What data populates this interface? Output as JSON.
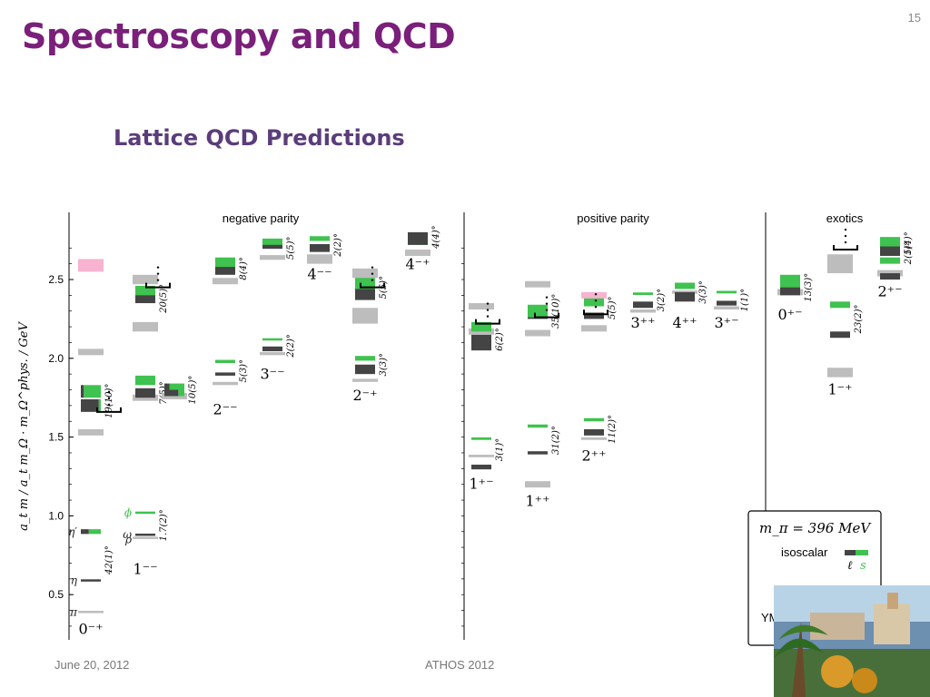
{
  "slide": {
    "title": "Spectroscopy and QCD",
    "subtitle": "Lattice QCD Predictions",
    "page_number": "15",
    "footer_date": "June 20, 2012",
    "footer_event": "ATHOS 2012"
  },
  "colors": {
    "isoscalar_light": "#444444",
    "isoscalar_strange": "#3fc24f",
    "isovector": "#bdbdbd",
    "glueball": "#f7b3d0",
    "title": "#7a1f7a",
    "subtitle": "#5a3d7a"
  },
  "chart_data": {
    "type": "spectrum",
    "ylabel": "a_t m / a_t m_Ω · m_Ω^phys. / GeV",
    "ylim": [
      0.25,
      2.85
    ],
    "yticks": [
      "0.5",
      "1.0",
      "1.5",
      "2.0",
      "2.5"
    ],
    "sections": [
      {
        "label": "negative parity",
        "columns": 9
      },
      {
        "label": "positive parity",
        "columns": 6
      },
      {
        "label": "exotics",
        "columns": 3
      }
    ],
    "legend": {
      "pion_mass": "m_π = 396 MeV",
      "isoscalar": "isoscalar",
      "isoscalar_light_symbol": "ℓ",
      "isoscalar_strange_symbol": "s",
      "isovector": "isovector",
      "glueball": "YM glueball"
    },
    "columns": [
      {
        "jpc": "0⁻⁺",
        "sec": 0,
        "col": 0,
        "states": [
          {
            "kind": "isovector",
            "mass": 0.39,
            "err": 0.005
          },
          {
            "kind": "isoscalar",
            "mass": 0.59,
            "err": 0.005,
            "strange": 0.0
          },
          {
            "kind": "isoscalar",
            "mass": 0.9,
            "err": 0.015,
            "strange": 0.6
          },
          {
            "kind": "isovector",
            "mass": 1.53,
            "err": 0.02
          },
          {
            "kind": "isoscalar",
            "mass": 1.7,
            "err": 0.04,
            "strange": 0.1
          },
          {
            "kind": "isoscalar",
            "mass": 1.79,
            "err": 0.04,
            "strange": 0.85
          },
          {
            "kind": "isovector",
            "mass": 2.04,
            "err": 0.02
          },
          {
            "kind": "glueball",
            "mass": 2.59,
            "err": 0.04
          }
        ],
        "labels": [
          {
            "text": "π",
            "mass": 0.39,
            "side": "left"
          },
          {
            "text": "η",
            "mass": 0.59,
            "side": "left"
          },
          {
            "text": "η′",
            "mass": 0.9,
            "side": "left"
          },
          {
            "text": "42(1)°",
            "mass": 0.72,
            "side": "right",
            "rotate": true
          },
          {
            "text": "19(10)°",
            "mass": 1.73,
            "side": "right",
            "rotate": true
          }
        ]
      },
      {
        "jpc": "1⁻⁻",
        "sec": 0,
        "col": 1,
        "states": [
          {
            "kind": "isovector",
            "mass": 0.86,
            "err": 0.004
          },
          {
            "kind": "isoscalar",
            "mass": 0.88,
            "err": 0.004,
            "strange": 0.0
          },
          {
            "kind": "isoscalar",
            "mass": 1.02,
            "err": 0.004,
            "strange": 1.0
          },
          {
            "kind": "isovector",
            "mass": 1.75,
            "err": 0.02
          },
          {
            "kind": "isoscalar",
            "mass": 1.78,
            "err": 0.03,
            "strange": 0.0
          },
          {
            "kind": "isoscalar",
            "mass": 1.86,
            "err": 0.03,
            "strange": 1.0
          },
          {
            "kind": "isovector",
            "mass": 2.2,
            "err": 0.03
          },
          {
            "kind": "isoscalar",
            "mass": 2.38,
            "err": 0.03,
            "strange": 0.0
          },
          {
            "kind": "isoscalar",
            "mass": 2.43,
            "err": 0.03,
            "strange": 1.0
          },
          {
            "kind": "isovector",
            "mass": 2.5,
            "err": 0.03
          }
        ],
        "labels": [
          {
            "text": "ϕ",
            "mass": 1.02,
            "side": "left",
            "color": "#3fc24f"
          },
          {
            "text": "ω",
            "mass": 0.88,
            "side": "left"
          },
          {
            "text": "ρ",
            "mass": 0.85,
            "side": "left"
          },
          {
            "text": "1.7(2)°",
            "mass": 0.94,
            "side": "right",
            "rotate": true
          },
          {
            "text": "7(5)°",
            "mass": 1.78,
            "side": "right",
            "rotate": true
          },
          {
            "text": "20(5)°",
            "mass": 2.38,
            "side": "right",
            "rotate": true
          }
        ]
      },
      {
        "jpc": "",
        "sec": 0,
        "col": 2,
        "states": [
          {
            "kind": "isovector",
            "mass": 1.76,
            "err": 0.02
          },
          {
            "kind": "isoscalar",
            "mass": 1.79,
            "err": 0.03,
            "strange": 0.3
          },
          {
            "kind": "isoscalar",
            "mass": 1.82,
            "err": 0.02,
            "strange": 0.75
          }
        ],
        "labels": [
          {
            "text": "10(5)°",
            "mass": 1.8,
            "side": "right",
            "rotate": true
          }
        ]
      },
      {
        "jpc": "2⁻⁻",
        "sec": 0,
        "col": 3,
        "states": [
          {
            "kind": "isovector",
            "mass": 1.84,
            "err": 0.01
          },
          {
            "kind": "isoscalar",
            "mass": 1.9,
            "err": 0.01,
            "strange": 0.0
          },
          {
            "kind": "isoscalar",
            "mass": 1.98,
            "err": 0.01,
            "strange": 1.0
          },
          {
            "kind": "isovector",
            "mass": 2.49,
            "err": 0.02
          },
          {
            "kind": "isoscalar",
            "mass": 2.57,
            "err": 0.04,
            "strange": 0.0
          },
          {
            "kind": "isoscalar",
            "mass": 2.61,
            "err": 0.03,
            "strange": 1.0
          }
        ],
        "labels": [
          {
            "text": "5(3)°",
            "mass": 1.92,
            "side": "right",
            "rotate": true
          },
          {
            "text": "8(4)°",
            "mass": 2.57,
            "side": "right",
            "rotate": true
          }
        ]
      },
      {
        "jpc": "3⁻⁻",
        "sec": 0,
        "col": 4,
        "states": [
          {
            "kind": "isovector",
            "mass": 2.03,
            "err": 0.01
          },
          {
            "kind": "isoscalar",
            "mass": 2.06,
            "err": 0.015,
            "strange": 0.0
          },
          {
            "kind": "isoscalar",
            "mass": 2.12,
            "err": 0.005,
            "strange": 1.0
          },
          {
            "kind": "isovector",
            "mass": 2.64,
            "err": 0.015
          },
          {
            "kind": "isoscalar",
            "mass": 2.72,
            "err": 0.025,
            "strange": 0.0
          },
          {
            "kind": "isoscalar",
            "mass": 2.74,
            "err": 0.02,
            "strange": 1.0
          }
        ],
        "labels": [
          {
            "text": "2(2)°",
            "mass": 2.08,
            "side": "right",
            "rotate": true
          },
          {
            "text": "5(5)°",
            "mass": 2.7,
            "side": "right",
            "rotate": true
          }
        ]
      },
      {
        "jpc": "4⁻⁻",
        "sec": 0,
        "col": 5,
        "states": [
          {
            "kind": "isovector",
            "mass": 2.63,
            "err": 0.03
          },
          {
            "kind": "isoscalar",
            "mass": 2.7,
            "err": 0.025,
            "strange": 0.0
          },
          {
            "kind": "isoscalar",
            "mass": 2.76,
            "err": 0.015,
            "strange": 1.0
          }
        ],
        "labels": [
          {
            "text": "2(2)°",
            "mass": 2.72,
            "side": "right",
            "rotate": true
          }
        ]
      },
      {
        "jpc": "2⁻⁺",
        "sec": 0,
        "col": 6,
        "states": [
          {
            "kind": "isovector",
            "mass": 1.86,
            "err": 0.01
          },
          {
            "kind": "isoscalar",
            "mass": 1.93,
            "err": 0.03,
            "strange": 0.0
          },
          {
            "kind": "isoscalar",
            "mass": 2.0,
            "err": 0.015,
            "strange": 1.0
          },
          {
            "kind": "isovector",
            "mass": 2.27,
            "err": 0.05
          },
          {
            "kind": "isoscalar",
            "mass": 2.41,
            "err": 0.04,
            "strange": 0.0
          },
          {
            "kind": "isoscalar",
            "mass": 2.48,
            "err": 0.04,
            "strange": 1.0
          },
          {
            "kind": "isovector",
            "mass": 2.54,
            "err": 0.03
          }
        ],
        "labels": [
          {
            "text": "3(3)°",
            "mass": 1.96,
            "side": "right",
            "rotate": true
          },
          {
            "text": "5(5)°",
            "mass": 2.45,
            "side": "right",
            "rotate": true
          }
        ]
      },
      {
        "jpc": "4⁻⁺",
        "sec": 0,
        "col": 7,
        "states": [
          {
            "kind": "isovector",
            "mass": 2.67,
            "err": 0.02
          },
          {
            "kind": "isoscalar",
            "mass": 2.76,
            "err": 0.04,
            "strange": 1.0
          },
          {
            "kind": "isoscalar",
            "mass": 2.76,
            "err": 0.04,
            "strange": 0.0
          }
        ],
        "labels": [
          {
            "text": "4(4)°",
            "mass": 2.77,
            "side": "right",
            "rotate": true
          }
        ]
      },
      {
        "jpc": "1⁺⁻",
        "sec": 1,
        "col": 0,
        "states": [
          {
            "kind": "isoscalar",
            "mass": 1.31,
            "err": 0.015,
            "strange": 0.0
          },
          {
            "kind": "isovector",
            "mass": 1.38,
            "err": 0.008
          },
          {
            "kind": "isoscalar",
            "mass": 1.49,
            "err": 0.008,
            "strange": 1.0
          },
          {
            "kind": "isoscalar",
            "mass": 2.1,
            "err": 0.05,
            "strange": 0.0
          },
          {
            "kind": "isovector",
            "mass": 2.17,
            "err": 0.02
          },
          {
            "kind": "isoscalar",
            "mass": 2.2,
            "err": 0.03,
            "strange": 1.0
          },
          {
            "kind": "isovector",
            "mass": 2.33,
            "err": 0.02
          }
        ],
        "labels": [
          {
            "text": "3(1)°",
            "mass": 1.42,
            "side": "right",
            "rotate": true
          },
          {
            "text": "6(2)°",
            "mass": 2.12,
            "side": "right",
            "rotate": true
          }
        ]
      },
      {
        "jpc": "1⁺⁺",
        "sec": 1,
        "col": 1,
        "states": [
          {
            "kind": "isovector",
            "mass": 1.2,
            "err": 0.02
          },
          {
            "kind": "isoscalar",
            "mass": 1.4,
            "err": 0.01,
            "strange": 0.0
          },
          {
            "kind": "isoscalar",
            "mass": 1.57,
            "err": 0.01,
            "strange": 1.0
          },
          {
            "kind": "isovector",
            "mass": 2.16,
            "err": 0.02
          },
          {
            "kind": "isoscalar",
            "mass": 2.28,
            "err": 0.03,
            "strange": 0.0
          },
          {
            "kind": "isoscalar",
            "mass": 2.3,
            "err": 0.04,
            "strange": 1.0
          },
          {
            "kind": "isovector",
            "mass": 2.47,
            "err": 0.02
          }
        ],
        "labels": [
          {
            "text": "31(2)°",
            "mass": 1.48,
            "side": "right",
            "rotate": true
          },
          {
            "text": "35(10)°",
            "mass": 2.3,
            "side": "right",
            "rotate": true
          }
        ]
      },
      {
        "jpc": "2⁺⁺",
        "sec": 1,
        "col": 2,
        "states": [
          {
            "kind": "isovector",
            "mass": 1.49,
            "err": 0.008
          },
          {
            "kind": "isoscalar",
            "mass": 1.53,
            "err": 0.02,
            "strange": 0.0
          },
          {
            "kind": "isoscalar",
            "mass": 1.61,
            "err": 0.01,
            "strange": 1.0
          },
          {
            "kind": "isovector",
            "mass": 2.19,
            "err": 0.02
          },
          {
            "kind": "isoscalar",
            "mass": 2.27,
            "err": 0.02,
            "strange": 0.0
          },
          {
            "kind": "isoscalar",
            "mass": 2.36,
            "err": 0.03,
            "strange": 1.0
          },
          {
            "kind": "glueball",
            "mass": 2.4,
            "err": 0.02
          }
        ],
        "labels": [
          {
            "text": "11(2)°",
            "mass": 1.55,
            "side": "right",
            "rotate": true
          },
          {
            "text": "5(5)°",
            "mass": 2.32,
            "side": "right",
            "rotate": true
          }
        ]
      },
      {
        "jpc": "3⁺⁺",
        "sec": 1,
        "col": 3,
        "states": [
          {
            "kind": "isovector",
            "mass": 2.3,
            "err": 0.01
          },
          {
            "kind": "isoscalar",
            "mass": 2.34,
            "err": 0.02,
            "strange": 0.0
          },
          {
            "kind": "isoscalar",
            "mass": 2.41,
            "err": 0.008,
            "strange": 1.0
          }
        ],
        "labels": [
          {
            "text": "3(2)°",
            "mass": 2.37,
            "side": "right",
            "rotate": true
          }
        ]
      },
      {
        "jpc": "4⁺⁺",
        "sec": 1,
        "col": 4,
        "states": [
          {
            "kind": "isovector",
            "mass": 2.42,
            "err": 0.01
          },
          {
            "kind": "isoscalar",
            "mass": 2.39,
            "err": 0.03,
            "strange": 0.0
          },
          {
            "kind": "isoscalar",
            "mass": 2.46,
            "err": 0.02,
            "strange": 1.0
          }
        ],
        "labels": [
          {
            "text": "3(3)°",
            "mass": 2.42,
            "side": "right",
            "rotate": true
          }
        ]
      },
      {
        "jpc": "3⁺⁻",
        "sec": 1,
        "col": 5,
        "states": [
          {
            "kind": "isovector",
            "mass": 2.32,
            "err": 0.01
          },
          {
            "kind": "isoscalar",
            "mass": 2.35,
            "err": 0.015,
            "strange": 0.0
          },
          {
            "kind": "isoscalar",
            "mass": 2.42,
            "err": 0.008,
            "strange": 1.0
          }
        ],
        "labels": [
          {
            "text": "1(1)°",
            "mass": 2.37,
            "side": "right",
            "rotate": true
          }
        ]
      },
      {
        "jpc": "0⁺⁻",
        "sec": 2,
        "col": 0,
        "states": [
          {
            "kind": "isovector",
            "mass": 2.42,
            "err": 0.02
          },
          {
            "kind": "isoscalar",
            "mass": 2.43,
            "err": 0.03,
            "strange": 0.0
          },
          {
            "kind": "isoscalar",
            "mass": 2.49,
            "err": 0.04,
            "strange": 1.0
          }
        ],
        "labels": [
          {
            "text": "13(3)°",
            "mass": 2.45,
            "side": "right",
            "rotate": true
          }
        ]
      },
      {
        "jpc": "1⁻⁺",
        "sec": 2,
        "col": 1,
        "states": [
          {
            "kind": "isovector",
            "mass": 1.91,
            "err": 0.03
          },
          {
            "kind": "isoscalar",
            "mass": 2.15,
            "err": 0.02,
            "strange": 0.0
          },
          {
            "kind": "isoscalar",
            "mass": 2.34,
            "err": 0.02,
            "strange": 1.0
          },
          {
            "kind": "isovector",
            "mass": 2.6,
            "err": 0.06
          }
        ],
        "labels": [
          {
            "text": "23(2)°",
            "mass": 2.25,
            "side": "right",
            "rotate": true
          }
        ]
      },
      {
        "jpc": "2⁺⁻",
        "sec": 2,
        "col": 2,
        "states": [
          {
            "kind": "isovector",
            "mass": 2.54,
            "err": 0.02
          },
          {
            "kind": "isoscalar",
            "mass": 2.52,
            "err": 0.02,
            "strange": 0.0
          },
          {
            "kind": "isoscalar",
            "mass": 2.62,
            "err": 0.02,
            "strange": 1.0
          },
          {
            "kind": "isoscalar",
            "mass": 2.69,
            "err": 0.04,
            "strange": 0.0
          },
          {
            "kind": "isoscalar",
            "mass": 2.74,
            "err": 0.03,
            "strange": 1.0
          }
        ],
        "labels": [
          {
            "text": "2(1)°",
            "mass": 2.67,
            "side": "right",
            "rotate": true
          },
          {
            "text": "5(4)°",
            "mass": 2.73,
            "side": "right",
            "rotate": true
          }
        ]
      }
    ]
  }
}
